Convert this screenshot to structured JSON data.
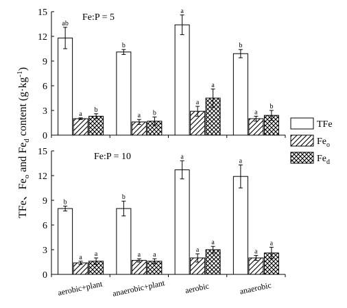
{
  "chart_data": {
    "type": "bar",
    "ylabel": {
      "p1": "TFe、Fe",
      "s1": "o",
      "p2": " and Fe",
      "s2": "d",
      "p3": " content (g·kg",
      "sup": "-1",
      "p4": ")"
    },
    "categories": [
      "aerobic+plant",
      "anaerobic+plant",
      "aerobic",
      "anaerobic"
    ],
    "legend": {
      "placement": "right",
      "items": [
        {
          "main": "TFe",
          "sub": "",
          "pattern": "open"
        },
        {
          "main": "Fe",
          "sub": "o",
          "pattern": "hatch"
        },
        {
          "main": "Fe",
          "sub": "d",
          "pattern": "crosshatch"
        }
      ]
    },
    "panels": [
      {
        "title": "Fe:P = 5",
        "ylim": [
          0,
          15
        ],
        "yticks": [
          0,
          3,
          6,
          9,
          12,
          15
        ],
        "series": [
          {
            "values": [
              11.8,
              10.1,
              13.4,
              9.9
            ],
            "errors": [
              1.3,
              0.3,
              1.2,
              0.5
            ],
            "letters": [
              "ab",
              "b",
              "a",
              "b"
            ]
          },
          {
            "values": [
              2.0,
              1.6,
              2.9,
              2.0
            ],
            "errors": [
              0.1,
              0.3,
              0.6,
              0.3
            ],
            "letters": [
              "a",
              "a",
              "a",
              "a"
            ]
          },
          {
            "values": [
              2.3,
              1.7,
              4.5,
              2.4
            ],
            "errors": [
              0.3,
              0.5,
              1.1,
              0.6
            ],
            "letters": [
              "b",
              "b",
              "a",
              "b"
            ]
          }
        ]
      },
      {
        "title": "Fe:P = 10",
        "ylim": [
          0,
          15
        ],
        "yticks": [
          0,
          3,
          6,
          9,
          12,
          15
        ],
        "series": [
          {
            "values": [
              8.0,
              8.0,
              12.7,
              11.9
            ],
            "errors": [
              0.3,
              0.9,
              1.1,
              1.4
            ],
            "letters": [
              "b",
              "b",
              "a",
              "a"
            ]
          },
          {
            "values": [
              1.4,
              1.7,
              2.0,
              2.0
            ],
            "errors": [
              0.2,
              0.2,
              0.5,
              0.3
            ],
            "letters": [
              "a",
              "a",
              "a",
              "a"
            ]
          },
          {
            "values": [
              1.6,
              1.6,
              3.0,
              2.6
            ],
            "errors": [
              0.4,
              0.3,
              0.4,
              0.7
            ],
            "letters": [
              "a",
              "a",
              "a",
              "a"
            ]
          }
        ]
      }
    ]
  }
}
